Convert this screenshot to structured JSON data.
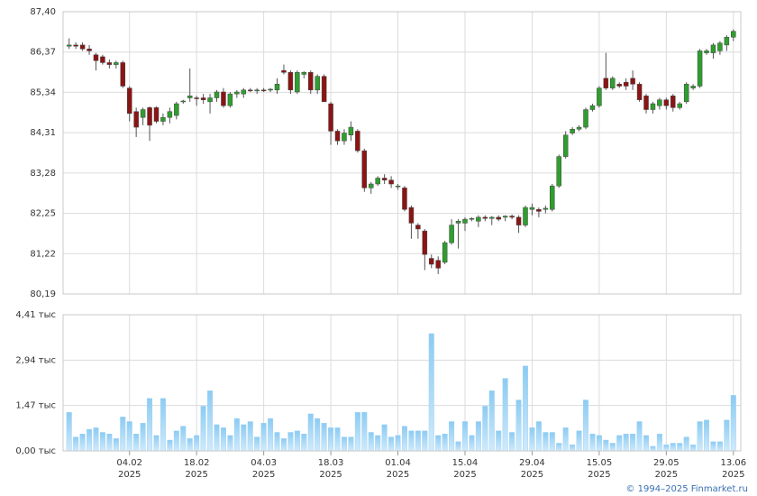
{
  "chart_data": [
    {
      "type": "candlestick",
      "up_color": "#2e9e2e",
      "down_color": "#8b1414",
      "open": [
        86.52,
        86.55,
        86.55,
        86.45,
        86.3,
        86.25,
        86.1,
        86.05,
        86.1,
        85.45,
        84.85,
        84.7,
        84.95,
        84.95,
        84.6,
        84.7,
        84.75,
        85.1,
        85.2,
        85.2,
        85.2,
        85.1,
        85.2,
        85.35,
        85.0,
        85.3,
        85.3,
        85.4,
        85.38,
        85.4,
        85.4,
        85.4,
        85.9,
        85.85,
        85.35,
        85.8,
        85.85,
        85.4,
        85.75,
        85.05,
        84.35,
        84.1,
        84.25,
        84.35,
        83.85,
        82.9,
        83.0,
        83.15,
        83.1,
        82.95,
        82.9,
        82.4,
        81.95,
        81.8,
        81.1,
        81.05,
        81.0,
        81.5,
        82.0,
        82.0,
        82.1,
        82.05,
        82.15,
        82.12,
        82.15,
        82.15,
        82.18,
        82.15,
        81.95,
        82.35,
        82.35,
        82.35,
        82.35,
        82.95,
        83.7,
        84.3,
        84.4,
        84.45,
        84.9,
        85.0,
        85.7,
        85.45,
        85.55,
        85.6,
        85.7,
        85.55,
        85.25,
        84.9,
        85.0,
        85.15,
        85.25,
        84.95,
        85.1,
        85.45,
        85.5,
        86.35,
        86.35,
        86.4,
        86.55,
        86.75
      ],
      "high": [
        86.72,
        86.62,
        86.62,
        86.55,
        86.35,
        86.3,
        86.18,
        86.15,
        86.15,
        85.5,
        84.95,
        84.95,
        84.98,
        84.98,
        84.8,
        84.95,
        85.1,
        85.15,
        85.95,
        85.25,
        85.3,
        85.3,
        85.4,
        85.45,
        85.35,
        85.4,
        85.45,
        85.45,
        85.45,
        85.45,
        85.45,
        85.7,
        86.05,
        85.9,
        85.9,
        85.88,
        85.9,
        85.8,
        85.8,
        85.1,
        84.4,
        84.4,
        84.6,
        84.4,
        83.9,
        83.05,
        83.2,
        83.25,
        83.2,
        83.0,
        82.95,
        82.45,
        82.0,
        81.85,
        81.2,
        81.15,
        81.55,
        82.1,
        82.1,
        82.15,
        82.15,
        82.2,
        82.2,
        82.18,
        82.2,
        82.2,
        82.22,
        82.2,
        82.45,
        82.5,
        82.4,
        82.45,
        83.0,
        83.75,
        84.35,
        84.45,
        84.5,
        84.95,
        85.05,
        85.5,
        86.35,
        85.75,
        85.6,
        85.7,
        85.9,
        85.6,
        85.3,
        85.1,
        85.2,
        85.2,
        85.3,
        85.1,
        85.6,
        85.55,
        86.45,
        86.45,
        86.6,
        86.65,
        86.8,
        86.95
      ],
      "low": [
        86.45,
        86.45,
        86.4,
        86.3,
        85.9,
        86.05,
        85.95,
        85.95,
        85.45,
        84.6,
        84.2,
        84.5,
        84.1,
        84.55,
        84.5,
        84.55,
        84.65,
        85.05,
        85.1,
        85.0,
        85.05,
        84.8,
        85.1,
        84.95,
        84.95,
        85.2,
        85.2,
        85.35,
        85.3,
        85.35,
        85.35,
        85.3,
        85.8,
        85.3,
        85.3,
        85.7,
        85.3,
        85.3,
        85.1,
        84.0,
        84.0,
        84.0,
        84.1,
        83.8,
        82.8,
        82.75,
        82.95,
        83.0,
        82.9,
        82.85,
        82.3,
        81.6,
        81.6,
        80.8,
        80.85,
        80.7,
        80.95,
        81.45,
        81.35,
        81.8,
        82.05,
        81.9,
        82.05,
        81.95,
        82.05,
        82.05,
        82.1,
        81.75,
        81.9,
        82.2,
        82.15,
        82.25,
        82.3,
        82.9,
        83.65,
        84.25,
        84.35,
        84.4,
        84.85,
        84.95,
        85.4,
        85.4,
        85.45,
        85.4,
        85.4,
        85.1,
        84.8,
        84.8,
        84.9,
        84.9,
        84.85,
        84.9,
        85.05,
        85.4,
        85.45,
        86.3,
        86.2,
        86.3,
        86.4,
        86.65
      ],
      "close": [
        86.55,
        86.52,
        86.45,
        86.4,
        86.15,
        86.1,
        86.05,
        86.1,
        85.5,
        84.8,
        84.45,
        84.9,
        84.5,
        84.6,
        84.7,
        84.85,
        85.05,
        85.12,
        85.25,
        85.18,
        85.15,
        85.2,
        85.35,
        85.0,
        85.3,
        85.35,
        85.4,
        85.38,
        85.4,
        85.38,
        85.42,
        85.55,
        85.85,
        85.4,
        85.85,
        85.85,
        85.4,
        85.75,
        85.1,
        84.35,
        84.1,
        84.3,
        84.45,
        83.85,
        82.9,
        83.0,
        83.15,
        83.1,
        83.0,
        82.95,
        82.35,
        82.0,
        81.85,
        81.2,
        80.95,
        80.85,
        81.5,
        81.95,
        82.05,
        82.1,
        82.12,
        82.15,
        82.12,
        82.15,
        82.1,
        82.18,
        82.15,
        81.95,
        82.4,
        82.4,
        82.3,
        82.38,
        82.95,
        83.7,
        84.25,
        84.4,
        84.45,
        84.9,
        85.0,
        85.45,
        85.45,
        85.7,
        85.5,
        85.5,
        85.55,
        85.15,
        84.9,
        85.05,
        85.15,
        85.0,
        84.95,
        85.05,
        85.55,
        85.5,
        86.4,
        86.4,
        86.55,
        86.6,
        86.75,
        86.9
      ],
      "ylim": [
        80.19,
        87.4
      ],
      "yticks": [
        {
          "value": 80.19,
          "label": "80,19"
        },
        {
          "value": 81.22,
          "label": "81,22"
        },
        {
          "value": 82.25,
          "label": "82,25"
        },
        {
          "value": 83.28,
          "label": "83,28"
        },
        {
          "value": 84.31,
          "label": "84,31"
        },
        {
          "value": 85.34,
          "label": "85,34"
        },
        {
          "value": 86.37,
          "label": "86,37"
        },
        {
          "value": 87.4,
          "label": "87,40"
        }
      ],
      "grid": true
    },
    {
      "type": "bar",
      "color": "#9ed2f4",
      "categories": [
        null,
        null,
        null,
        null,
        null,
        null,
        null,
        null,
        null,
        "04.02\n2025",
        null,
        null,
        null,
        null,
        null,
        null,
        null,
        null,
        null,
        "18.02\n2025",
        null,
        null,
        null,
        null,
        null,
        null,
        null,
        null,
        null,
        "04.03\n2025",
        null,
        null,
        null,
        null,
        null,
        null,
        null,
        null,
        null,
        "18.03\n2025",
        null,
        null,
        null,
        null,
        null,
        null,
        null,
        null,
        null,
        "01.04\n2025",
        null,
        null,
        null,
        null,
        null,
        null,
        null,
        null,
        null,
        "15.04\n2025",
        null,
        null,
        null,
        null,
        null,
        null,
        null,
        null,
        null,
        "29.04\n2025",
        null,
        null,
        null,
        null,
        null,
        null,
        null,
        null,
        null,
        "15.05\n2025",
        null,
        null,
        null,
        null,
        null,
        null,
        null,
        null,
        null,
        "29.05\n2025",
        null,
        null,
        null,
        null,
        null,
        null,
        null,
        null,
        null,
        "13.06\n2025"
      ],
      "values": [
        1.25,
        0.45,
        0.55,
        0.7,
        0.75,
        0.6,
        0.55,
        0.4,
        1.1,
        0.95,
        0.55,
        0.9,
        1.7,
        0.5,
        1.7,
        0.35,
        0.65,
        0.8,
        0.4,
        0.5,
        1.45,
        1.95,
        0.85,
        0.75,
        0.5,
        1.05,
        0.85,
        0.95,
        0.45,
        0.9,
        1.05,
        0.6,
        0.4,
        0.6,
        0.65,
        0.55,
        1.2,
        1.05,
        0.9,
        0.75,
        0.75,
        0.45,
        0.45,
        1.25,
        1.25,
        0.6,
        0.5,
        0.85,
        0.45,
        0.5,
        0.8,
        0.65,
        0.65,
        0.65,
        3.8,
        0.5,
        0.55,
        0.95,
        0.3,
        0.95,
        0.5,
        0.95,
        1.45,
        1.95,
        0.65,
        2.35,
        0.6,
        1.65,
        2.75,
        0.75,
        0.95,
        0.6,
        0.6,
        0.25,
        0.75,
        0.2,
        0.65,
        1.65,
        0.55,
        0.5,
        0.35,
        0.25,
        0.5,
        0.55,
        0.55,
        0.95,
        0.5,
        0.15,
        0.55,
        0.2,
        0.25,
        0.25,
        0.45,
        0.2,
        0.95,
        1.0,
        0.3,
        0.3,
        1.0,
        1.8
      ],
      "ylim": [
        0,
        4.41
      ],
      "yticks": [
        {
          "value": 0,
          "label": "0,00 тыс"
        },
        {
          "value": 1.47,
          "label": "1,47 тыс"
        },
        {
          "value": 2.94,
          "label": "2,94 тыс"
        },
        {
          "value": 4.41,
          "label": "4,41 тыс"
        }
      ],
      "grid": true,
      "source": "© 1994–2025 Finmarket.ru"
    }
  ]
}
